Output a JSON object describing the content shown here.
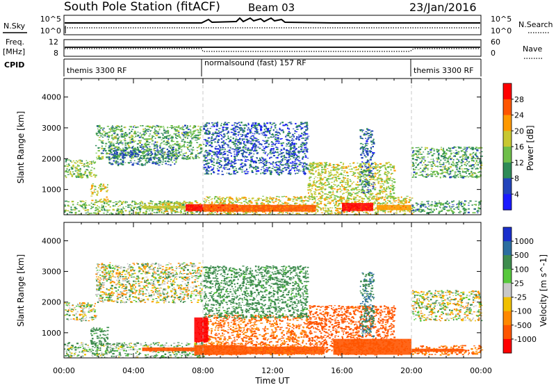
{
  "header": {
    "station": "South Pole Station (fitACF)",
    "beam": "Beam 03",
    "date": "23/Jan/2016"
  },
  "strips": {
    "sky_label": "N.Sky",
    "search_label": "N.Search",
    "freq_label_1": "Freq.",
    "freq_label_2": "[MHz]",
    "nave_label": "Nave",
    "cpid_label": "CPID",
    "sky_ticks_left": [
      "10^5",
      "10^0"
    ],
    "sky_ticks_right": [
      "10^5",
      "10^0"
    ],
    "freq_ticks": [
      "12",
      "8"
    ],
    "nave_ticks": [
      "60",
      "0"
    ],
    "cpid_segments": [
      {
        "label": "themis 3300 RF",
        "start_h": 0.0,
        "end_h": 8.0
      },
      {
        "label": "normalsound (fast) 157 RF",
        "start_h": 8.0,
        "end_h": 20.0
      },
      {
        "label": "themis 3300 RF",
        "start_h": 20.0,
        "end_h": 24.0
      }
    ]
  },
  "chart_data": [
    {
      "type": "heatmap",
      "title": "Power",
      "ylabel": "Slant Range [km]",
      "xlabel": "Time UT",
      "xlim": [
        0,
        24
      ],
      "ylim": [
        180,
        4600
      ],
      "y_ticks": [
        "1000",
        "2000",
        "3000",
        "4000"
      ],
      "x_ticks": [
        "00:00",
        "04:00",
        "08:00",
        "12:00",
        "16:00",
        "20:00",
        "00:00"
      ],
      "colorbar_label": "Power [dB]",
      "colorbar_ticks": [
        "4",
        "8",
        "12",
        "16",
        "20",
        "24",
        "28"
      ],
      "colorbar_colors": [
        "#1a1aff",
        "#2244bb",
        "#2e8b57",
        "#6fbf4a",
        "#c8c832",
        "#ff9900",
        "#ff5500",
        "#ff0000"
      ],
      "scatter_regions": [
        {
          "t0": 0.0,
          "t1": 1.8,
          "r0": 1400,
          "r1": 2000,
          "power": 14
        },
        {
          "t0": 1.8,
          "t1": 7.9,
          "r0": 2000,
          "r1": 3100,
          "power": 12
        },
        {
          "t0": 2.5,
          "t1": 6.5,
          "r0": 1800,
          "r1": 2400,
          "power": 9
        },
        {
          "t0": 0.0,
          "t1": 8.0,
          "r0": 200,
          "r1": 650,
          "power": 14
        },
        {
          "t0": 1.5,
          "t1": 2.5,
          "r0": 600,
          "r1": 1200,
          "power": 18
        },
        {
          "t0": 5.3,
          "t1": 7.8,
          "r0": 300,
          "r1": 600,
          "power": 18
        },
        {
          "t0": 8.0,
          "t1": 20.0,
          "r0": 200,
          "r1": 800,
          "power": 18
        },
        {
          "t0": 8.0,
          "t1": 14.0,
          "r0": 1500,
          "r1": 3200,
          "power": 7
        },
        {
          "t0": 14.0,
          "t1": 19.0,
          "r0": 700,
          "r1": 1900,
          "power": 17
        },
        {
          "t0": 17.0,
          "t1": 17.8,
          "r0": 900,
          "r1": 3000,
          "power": 8
        },
        {
          "t0": 20.0,
          "t1": 24.0,
          "r0": 1400,
          "r1": 2400,
          "power": 12
        },
        {
          "t0": 20.0,
          "t1": 24.0,
          "r0": 250,
          "r1": 650,
          "power": 11
        }
      ],
      "solid_regions": [
        {
          "t0": 7.0,
          "t1": 8.0,
          "r0": 300,
          "r1": 520,
          "power": 28
        },
        {
          "t0": 8.0,
          "t1": 10.0,
          "r0": 280,
          "r1": 520,
          "power": 26
        },
        {
          "t0": 10.0,
          "t1": 14.5,
          "r0": 280,
          "r1": 500,
          "power": 24
        },
        {
          "t0": 16.0,
          "t1": 17.8,
          "r0": 300,
          "r1": 560,
          "power": 29
        },
        {
          "t0": 18.0,
          "t1": 20.0,
          "r0": 330,
          "r1": 500,
          "power": 22
        },
        {
          "t0": 4.5,
          "t1": 7.0,
          "r0": 380,
          "r1": 470,
          "power": 18
        }
      ]
    },
    {
      "type": "heatmap",
      "title": "Velocity",
      "ylabel": "Slant Range [km]",
      "xlabel": "Time UT",
      "xlim": [
        0,
        24
      ],
      "ylim": [
        180,
        4600
      ],
      "y_ticks": [
        "1000",
        "2000",
        "3000",
        "4000"
      ],
      "x_ticks": [
        "00:00",
        "04:00",
        "08:00",
        "12:00",
        "16:00",
        "20:00",
        "00:00"
      ],
      "colorbar_label": "Velocity [m s^-1]",
      "colorbar_ticks": [
        "1000",
        "500",
        "100",
        "25",
        "-25",
        "-100",
        "-500",
        "-1000"
      ],
      "colorbar_colors": [
        "#1a2fcc",
        "#2c6e9f",
        "#3e8c4e",
        "#57c83c",
        "#c8c8c8",
        "#f0c000",
        "#ff8800",
        "#ff5500",
        "#ff0000"
      ],
      "scatter_regions": [
        {
          "t0": 0.0,
          "t1": 1.8,
          "r0": 1400,
          "r1": 2000,
          "velocity": 0
        },
        {
          "t0": 1.8,
          "t1": 7.9,
          "r0": 2000,
          "r1": 3300,
          "velocity": 0
        },
        {
          "t0": 0.0,
          "t1": 8.0,
          "r0": 200,
          "r1": 700,
          "velocity": 60
        },
        {
          "t0": 1.5,
          "t1": 2.5,
          "r0": 600,
          "r1": 1200,
          "velocity": 150
        },
        {
          "t0": 8.0,
          "t1": 14.0,
          "r0": 300,
          "r1": 1600,
          "velocity": -300
        },
        {
          "t0": 8.0,
          "t1": 14.0,
          "r0": 1500,
          "r1": 3200,
          "velocity": 150
        },
        {
          "t0": 14.0,
          "t1": 19.0,
          "r0": 400,
          "r1": 1900,
          "velocity": -400
        },
        {
          "t0": 17.0,
          "t1": 17.8,
          "r0": 900,
          "r1": 3000,
          "velocity": 300
        },
        {
          "t0": 20.0,
          "t1": 24.0,
          "r0": 1400,
          "r1": 2400,
          "velocity": 0
        },
        {
          "t0": 20.0,
          "t1": 24.0,
          "r0": 300,
          "r1": 600,
          "velocity": -300
        }
      ],
      "solid_regions": [
        {
          "t0": 4.5,
          "t1": 7.5,
          "r0": 400,
          "r1": 520,
          "velocity": -500
        },
        {
          "t0": 7.5,
          "t1": 10.5,
          "r0": 280,
          "r1": 600,
          "velocity": -450
        },
        {
          "t0": 10.5,
          "t1": 15.0,
          "r0": 300,
          "r1": 550,
          "velocity": -350
        },
        {
          "t0": 15.5,
          "t1": 20.0,
          "r0": 280,
          "r1": 800,
          "velocity": -500
        },
        {
          "t0": 20.0,
          "t1": 23.0,
          "r0": 380,
          "r1": 480,
          "velocity": -500
        },
        {
          "t0": 7.5,
          "t1": 8.3,
          "r0": 700,
          "r1": 1500,
          "velocity": -900
        }
      ]
    }
  ]
}
